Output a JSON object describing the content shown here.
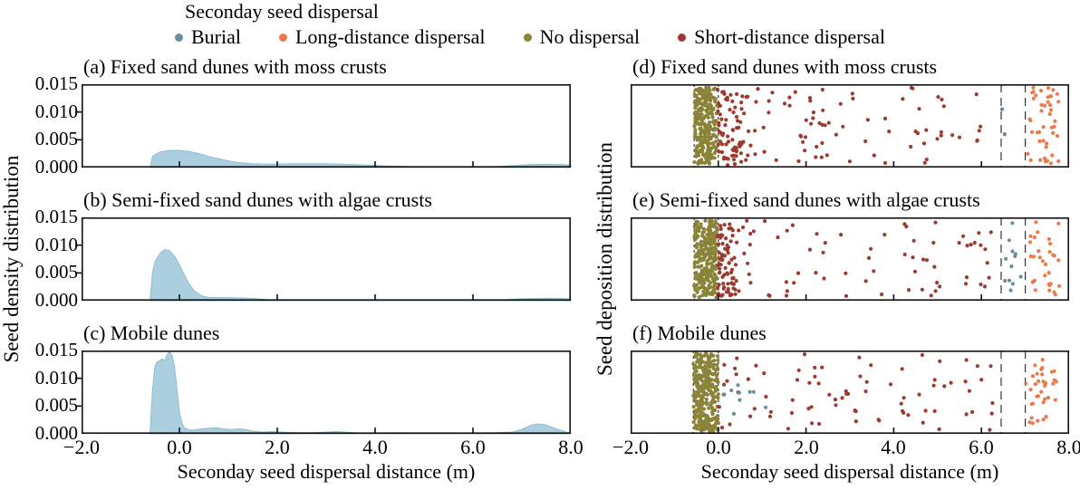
{
  "legend": {
    "title": "Seconday seed dispersal",
    "items": [
      {
        "label": "Burial",
        "color": "#6b8da0"
      },
      {
        "label": "Long-distance dispersal",
        "color": "#ea7a4d"
      },
      {
        "label": "No dispersal",
        "color": "#8a8339"
      },
      {
        "label": "Short-distance dispersal",
        "color": "#9d3a2f"
      }
    ]
  },
  "axes": {
    "left_ylabel": "Seed density distribution",
    "right_ylabel": "Seed deposition distribution",
    "xlabel": "Seconday seed dispersal distance (m)",
    "x_ticks": [
      "−2.0",
      "0.0",
      "2.0",
      "4.0",
      "6.0",
      "8.0"
    ],
    "x_tick_values": [
      -2,
      0,
      2,
      4,
      6,
      8
    ],
    "y_ticks": [
      "0.015",
      "0.010",
      "0.005",
      "0.000"
    ],
    "x_range": [
      -2,
      8
    ],
    "y_range": [
      0,
      0.015
    ]
  },
  "colors": {
    "density_fill": "#abcfdf",
    "density_edge": "#8fbdd3",
    "axis": "#111111",
    "guide": "#333333"
  },
  "chart_data": [
    {
      "id": "a",
      "type": "area",
      "title": "(a) Fixed sand dunes with moss crusts",
      "xlim": [
        -2,
        8
      ],
      "ylim": [
        0,
        0.015
      ],
      "x": [
        -0.6,
        -0.55,
        -0.4,
        -0.2,
        0,
        0.2,
        0.4,
        0.6,
        0.8,
        1.0,
        1.2,
        1.5,
        1.8,
        2.2,
        2.6,
        3.0,
        3.4,
        3.8,
        4.2,
        4.6,
        5.0,
        5.5,
        6.0,
        6.5,
        6.9,
        7.2,
        7.5,
        7.8,
        8.0
      ],
      "y": [
        0,
        0.002,
        0.0028,
        0.0031,
        0.0031,
        0.0029,
        0.0025,
        0.002,
        0.0016,
        0.0012,
        0.0009,
        0.0007,
        0.00062,
        0.00068,
        0.0007,
        0.0007,
        0.0006,
        0.00045,
        0.0003,
        0.0002,
        0.00015,
        0.0001,
        0.0001,
        0.00018,
        0.0004,
        0.00055,
        0.0006,
        0.00055,
        0.0005
      ]
    },
    {
      "id": "b",
      "type": "area",
      "title": "(b) Semi-fixed sand dunes with algae crusts",
      "xlim": [
        -2,
        8
      ],
      "ylim": [
        0,
        0.015
      ],
      "x": [
        -0.6,
        -0.55,
        -0.5,
        -0.4,
        -0.3,
        -0.2,
        -0.1,
        0,
        0.1,
        0.2,
        0.3,
        0.45,
        0.6,
        0.8,
        1.0,
        1.2,
        1.5,
        1.8,
        2.0,
        2.2,
        2.5,
        3.0,
        4.0,
        5.0,
        6.0,
        6.5,
        7.0,
        7.3,
        7.6,
        7.8,
        8.0
      ],
      "y": [
        0,
        0.005,
        0.007,
        0.0085,
        0.0092,
        0.009,
        0.008,
        0.0065,
        0.0047,
        0.003,
        0.0018,
        0.0009,
        0.0006,
        0.00055,
        0.00055,
        0.0005,
        0.0004,
        0.0002,
        0.00015,
        0.00018,
        0.0001,
        5e-05,
        0,
        0,
        5e-05,
        0.0001,
        0.00035,
        0.0004,
        0.00045,
        0.0004,
        0.0003
      ]
    },
    {
      "id": "c",
      "type": "area",
      "title": "(c) Mobile dunes",
      "xlim": [
        -2,
        8
      ],
      "ylim": [
        0,
        0.015
      ],
      "x": [
        -0.6,
        -0.55,
        -0.5,
        -0.45,
        -0.4,
        -0.35,
        -0.3,
        -0.25,
        -0.2,
        -0.15,
        -0.1,
        -0.05,
        0,
        0.05,
        0.1,
        0.2,
        0.3,
        0.45,
        0.6,
        0.75,
        0.9,
        1.05,
        1.2,
        1.35,
        1.5,
        1.7,
        1.9,
        2.1,
        2.4,
        2.7,
        3.0,
        3.2,
        3.4,
        3.7,
        4.0,
        4.5,
        5.0,
        5.5,
        6.0,
        6.5,
        6.8,
        7.0,
        7.2,
        7.35,
        7.5,
        7.7,
        7.9,
        8.0
      ],
      "y": [
        0,
        0.008,
        0.0122,
        0.013,
        0.0132,
        0.0135,
        0.0132,
        0.0143,
        0.0148,
        0.0141,
        0.0121,
        0.008,
        0.004,
        0.002,
        0.0011,
        0.0007,
        0.0007,
        0.0009,
        0.001,
        0.0011,
        0.0009,
        0.0008,
        0.0009,
        0.0008,
        0.0005,
        0.0003,
        0.0004,
        0.0003,
        0.0002,
        0.0002,
        0.0003,
        0.0004,
        0.0003,
        0.0001,
        0.0001,
        0.0002,
        0.0001,
        0.0001,
        0.0001,
        0.0002,
        0.0003,
        0.0008,
        0.0016,
        0.0018,
        0.0016,
        0.0009,
        0.0003,
        0.0001
      ]
    },
    {
      "id": "d",
      "type": "scatter",
      "title": "(d) Fixed sand dunes with moss crusts",
      "xlim": [
        -2,
        8
      ],
      "guides": [
        {
          "x": -0.55,
          "dash": "3,3"
        },
        {
          "x": 0.0,
          "dash": "3,3"
        },
        {
          "x": 6.45,
          "dash": "9,6"
        },
        {
          "x": 7.0,
          "dash": "9,6"
        }
      ],
      "groups": [
        {
          "name": "No dispersal",
          "color": "#8a8339",
          "n": 260,
          "x": [
            -0.55,
            -0.03
          ],
          "y": [
            0.04,
            0.96
          ],
          "seed": 101
        },
        {
          "name": "Short-distance dispersal",
          "color": "#9d3a2f",
          "n": 58,
          "x": [
            -0.02,
            0.55
          ],
          "y": [
            0.04,
            0.97
          ],
          "pow": 1.3,
          "seed": 102
        },
        {
          "name": "Short-distance dispersal",
          "color": "#9d3a2f",
          "n": 92,
          "x": [
            0.35,
            6.3
          ],
          "y": [
            0.04,
            0.96
          ],
          "pow": 1.45,
          "seed": 103
        },
        {
          "name": "Burial",
          "color": "#6b8da0",
          "points": [
            [
              6.47,
              0.3
            ],
            [
              6.53,
              0.6
            ]
          ]
        },
        {
          "name": "Long-distance dispersal",
          "color": "#ea7a4d",
          "n": 44,
          "x": [
            7.05,
            7.76
          ],
          "y": [
            0.04,
            0.96
          ],
          "seed": 104
        }
      ]
    },
    {
      "id": "e",
      "type": "scatter",
      "title": "(e) Semi-fixed sand dunes with algae crusts",
      "xlim": [
        -2,
        8
      ],
      "guides": [
        {
          "x": -0.55,
          "dash": "3,3"
        },
        {
          "x": 0.0,
          "dash": "3,3"
        },
        {
          "x": 6.45,
          "dash": "9,6"
        },
        {
          "x": 7.0,
          "dash": "9,6"
        }
      ],
      "groups": [
        {
          "name": "No dispersal",
          "color": "#8a8339",
          "n": 285,
          "x": [
            -0.55,
            -0.03
          ],
          "y": [
            0.04,
            0.96
          ],
          "seed": 201
        },
        {
          "name": "Short-distance dispersal",
          "color": "#9d3a2f",
          "n": 66,
          "x": [
            -0.02,
            0.42
          ],
          "y": [
            0.04,
            0.97
          ],
          "pow": 1.3,
          "seed": 202
        },
        {
          "name": "Short-distance dispersal",
          "color": "#9d3a2f",
          "n": 76,
          "x": [
            0.3,
            6.25
          ],
          "y": [
            0.04,
            0.96
          ],
          "pow": 1.4,
          "seed": 203
        },
        {
          "name": "Burial",
          "color": "#6b8da0",
          "n": 12,
          "x": [
            6.5,
            6.95
          ],
          "y": [
            0.06,
            0.96
          ],
          "seed": 204
        },
        {
          "name": "Long-distance dispersal",
          "color": "#ea7a4d",
          "n": 30,
          "x": [
            7.02,
            7.78
          ],
          "y": [
            0.05,
            0.95
          ],
          "seed": 205
        }
      ]
    },
    {
      "id": "f",
      "type": "scatter",
      "title": "(f) Mobile dunes",
      "xlim": [
        -2,
        8
      ],
      "guides": [
        {
          "x": -0.57,
          "dash": "3,3"
        },
        {
          "x": 0.0,
          "dash": "3,3"
        },
        {
          "x": 6.45,
          "dash": "9,6"
        },
        {
          "x": 7.0,
          "dash": "9,6"
        }
      ],
      "groups": [
        {
          "name": "No dispersal",
          "color": "#8a8339",
          "n": 300,
          "x": [
            -0.57,
            0.0
          ],
          "y": [
            0.03,
            0.97
          ],
          "seed": 301
        },
        {
          "name": "Short-distance dispersal",
          "color": "#9d3a2f",
          "n": 80,
          "x": [
            0.02,
            6.3
          ],
          "y": [
            0.04,
            0.96
          ],
          "pow": 1.25,
          "seed": 302
        },
        {
          "name": "Burial",
          "color": "#6b8da0",
          "n": 9,
          "x": [
            0.12,
            1.15
          ],
          "y": [
            0.2,
            0.8
          ],
          "seed": 303
        },
        {
          "name": "Long-distance dispersal",
          "color": "#ea7a4d",
          "n": 36,
          "x": [
            7.0,
            7.72
          ],
          "y": [
            0.05,
            0.95
          ],
          "seed": 304
        }
      ]
    }
  ]
}
